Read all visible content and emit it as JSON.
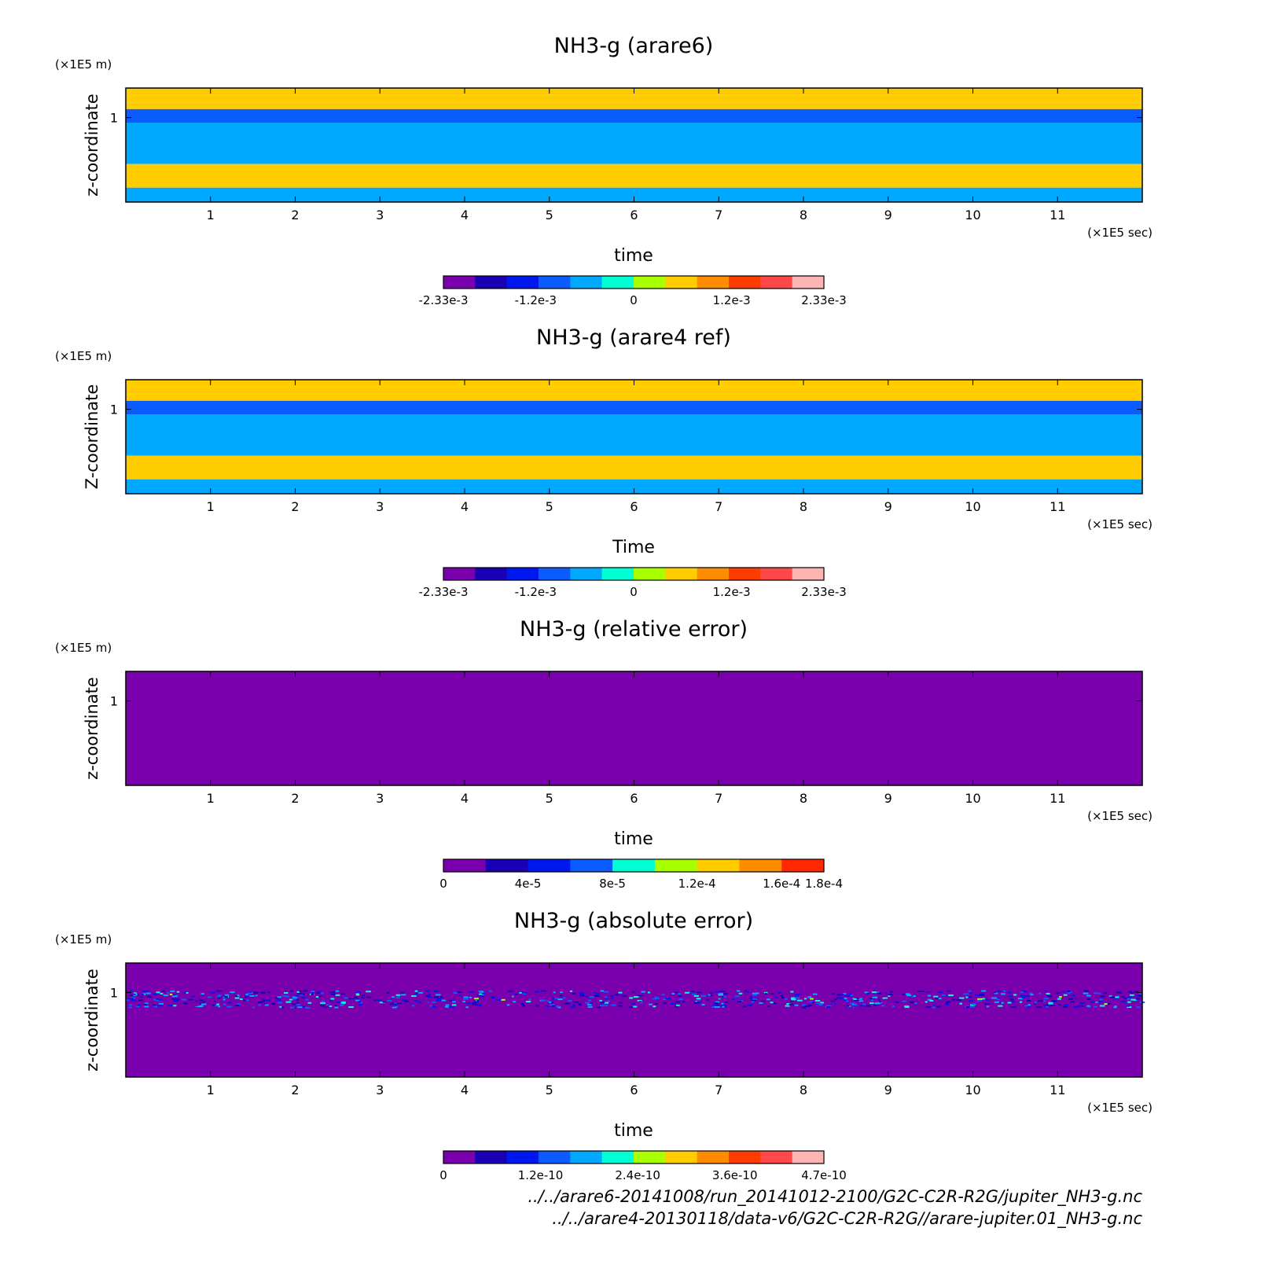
{
  "colors": {
    "ramp_12": [
      "#7a00ae",
      "#1a00b4",
      "#0018f0",
      "#0a5cff",
      "#00a8ff",
      "#00ffd2",
      "#a8ff00",
      "#ffcc00",
      "#ff8c00",
      "#ff3c00",
      "#ff4848",
      "#ffb4b4"
    ],
    "ramp_9": [
      "#7a00ae",
      "#1a00b4",
      "#0018f0",
      "#0a5cff",
      "#00ffd2",
      "#a8ff00",
      "#ffcc00",
      "#ff8c00",
      "#ff2800"
    ]
  },
  "chart_data": [
    {
      "type": "heatmap",
      "title": "NH3-g (arare6)",
      "xlabel": "time",
      "ylabel": "z-coordinate",
      "x_unit": "(×1E5 sec)",
      "y_unit": "(×1E5 m)",
      "xlim": [
        0,
        12
      ],
      "ylim": [
        0,
        1.35
      ],
      "x_ticks": [
        1,
        2,
        3,
        4,
        5,
        6,
        7,
        8,
        9,
        10,
        11
      ],
      "y_ticks": [
        1
      ],
      "colorbar": {
        "min": -0.00233,
        "max": 0.00233,
        "labels": [
          "-2.33e-3",
          "-1.2e-3",
          "0",
          "1.2e-3",
          "2.33e-3"
        ],
        "label_values": [
          -0.00233,
          -0.0012,
          0,
          0.0012,
          0.00233
        ]
      },
      "bands": [
        {
          "z0": 1.27,
          "z1": 1.35,
          "value": 0.0004
        },
        {
          "z0": 1.18,
          "z1": 1.27,
          "value": 0.0004
        },
        {
          "z0": 1.1,
          "z1": 1.18,
          "value": 0.0004
        },
        {
          "z0": 0.94,
          "z1": 1.1,
          "value": -0.0008
        },
        {
          "z0": 0.45,
          "z1": 0.94,
          "value": -0.0004
        },
        {
          "z0": 0.17,
          "z1": 0.45,
          "value": 0.0004
        },
        {
          "z0": 0.0,
          "z1": 0.17,
          "value": -0.0004
        }
      ]
    },
    {
      "type": "heatmap",
      "title": "NH3-g (arare4 ref)",
      "xlabel": "Time",
      "ylabel": "Z-coordinate",
      "x_unit": "(×1E5 sec)",
      "y_unit": "(×1E5 m)",
      "xlim": [
        0,
        12
      ],
      "ylim": [
        0,
        1.35
      ],
      "x_ticks": [
        1,
        2,
        3,
        4,
        5,
        6,
        7,
        8,
        9,
        10,
        11
      ],
      "y_ticks": [
        1
      ],
      "colorbar": {
        "min": -0.00233,
        "max": 0.00233,
        "labels": [
          "-2.33e-3",
          "-1.2e-3",
          "0",
          "1.2e-3",
          "2.33e-3"
        ],
        "label_values": [
          -0.00233,
          -0.0012,
          0,
          0.0012,
          0.00233
        ]
      },
      "bands": [
        {
          "z0": 1.27,
          "z1": 1.35,
          "value": 0.0004
        },
        {
          "z0": 1.18,
          "z1": 1.27,
          "value": 0.0004
        },
        {
          "z0": 1.1,
          "z1": 1.18,
          "value": 0.0004
        },
        {
          "z0": 0.94,
          "z1": 1.1,
          "value": -0.0008
        },
        {
          "z0": 0.45,
          "z1": 0.94,
          "value": -0.0004
        },
        {
          "z0": 0.17,
          "z1": 0.45,
          "value": 0.0004
        },
        {
          "z0": 0.0,
          "z1": 0.17,
          "value": -0.0004
        }
      ]
    },
    {
      "type": "heatmap",
      "title": "NH3-g (relative error)",
      "xlabel": "time",
      "ylabel": "z-coordinate",
      "x_unit": "(×1E5 sec)",
      "y_unit": "(×1E5 m)",
      "xlim": [
        0,
        12
      ],
      "ylim": [
        0,
        1.35
      ],
      "x_ticks": [
        1,
        2,
        3,
        4,
        5,
        6,
        7,
        8,
        9,
        10,
        11
      ],
      "y_ticks": [
        1
      ],
      "colorbar": {
        "min": 0,
        "max": 0.00018,
        "labels": [
          "0",
          "4e-5",
          "8e-5",
          "1.2e-4",
          "1.6e-4",
          "1.8e-4"
        ],
        "label_values": [
          0,
          4e-05,
          8e-05,
          0.00012,
          0.00016,
          0.00018
        ]
      },
      "bands": [
        {
          "z0": 0.0,
          "z1": 1.35,
          "value": 0.0
        }
      ]
    },
    {
      "type": "heatmap",
      "title": "NH3-g (absolute error)",
      "xlabel": "time",
      "ylabel": "z-coordinate",
      "x_unit": "(×1E5 sec)",
      "y_unit": "(×1E5 m)",
      "xlim": [
        0,
        12
      ],
      "ylim": [
        0,
        1.35
      ],
      "x_ticks": [
        1,
        2,
        3,
        4,
        5,
        6,
        7,
        8,
        9,
        10,
        11
      ],
      "y_ticks": [
        1
      ],
      "colorbar": {
        "min": 0,
        "max": 4.7e-10,
        "labels": [
          "0",
          "1.2e-10",
          "2.4e-10",
          "3.6e-10",
          "4.7e-10"
        ],
        "label_values": [
          0,
          1.2e-10,
          2.4e-10,
          3.6e-10,
          4.7e-10
        ]
      },
      "bands": [
        {
          "z0": 0.0,
          "z1": 1.35,
          "value": 0.0
        }
      ],
      "noise_band": {
        "z0": 0.83,
        "z1": 1.03,
        "max_value": 2.4e-10
      }
    }
  ],
  "footer": {
    "line1": "../../arare6-20141008/run_20141012-2100/G2C-C2R-R2G/jupiter_NH3-g.nc",
    "line2": "../../arare4-20130118/data-v6/G2C-C2R-R2G//arare-jupiter.01_NH3-g.nc"
  }
}
